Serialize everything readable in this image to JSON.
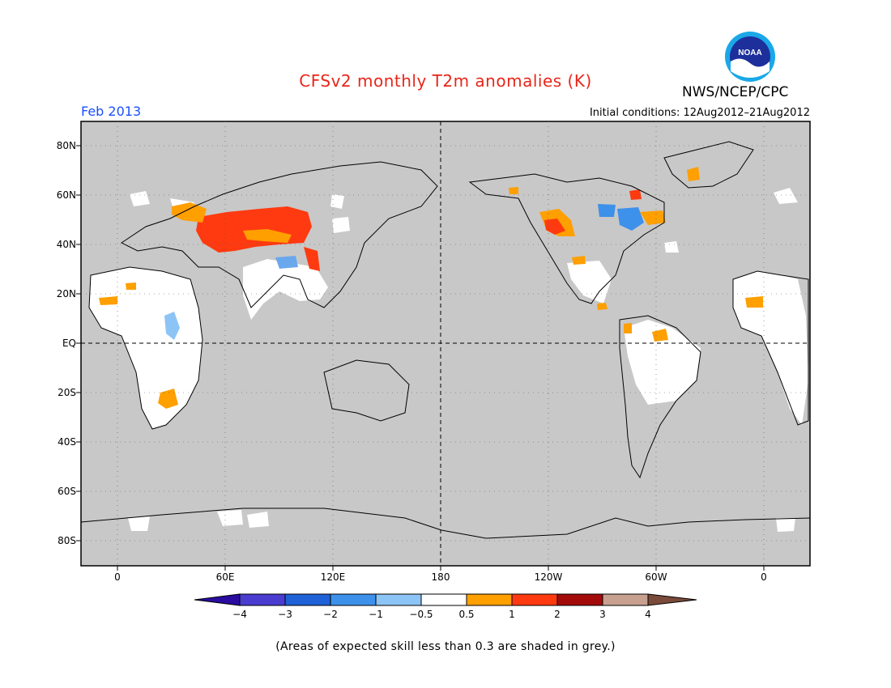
{
  "header": {
    "title": "CFSv2 monthly T2m anomalies (K)",
    "org": "NWS/NCEP/CPC",
    "period": "Feb 2013",
    "initial_conditions": "Initial conditions: 12Aug2012–21Aug2012",
    "logo_text": "NOAA"
  },
  "map": {
    "lat_labels": [
      "80N",
      "60N",
      "40N",
      "20N",
      "EQ",
      "20S",
      "40S",
      "60S",
      "80S"
    ],
    "lon_labels": [
      "0",
      "60E",
      "120E",
      "180",
      "120W",
      "60W",
      "0"
    ],
    "background_color": "#c8c8c8",
    "skill_area_color": "#ffffff"
  },
  "colorbar": {
    "labels": [
      "−4",
      "−3",
      "−2",
      "−1",
      "−0.5",
      "0.5",
      "1",
      "2",
      "3",
      "4"
    ],
    "colors": [
      "#2a0ca0",
      "#4a3ccf",
      "#1f62d8",
      "#3e91ea",
      "#8cc4f6",
      "#ffffff",
      "#ff9f00",
      "#ff3a10",
      "#a30a0a",
      "#c8a090",
      "#7a4a3a"
    ]
  },
  "footer": {
    "note": "(Areas of expected skill less than 0.3 are shaded in grey.)"
  }
}
